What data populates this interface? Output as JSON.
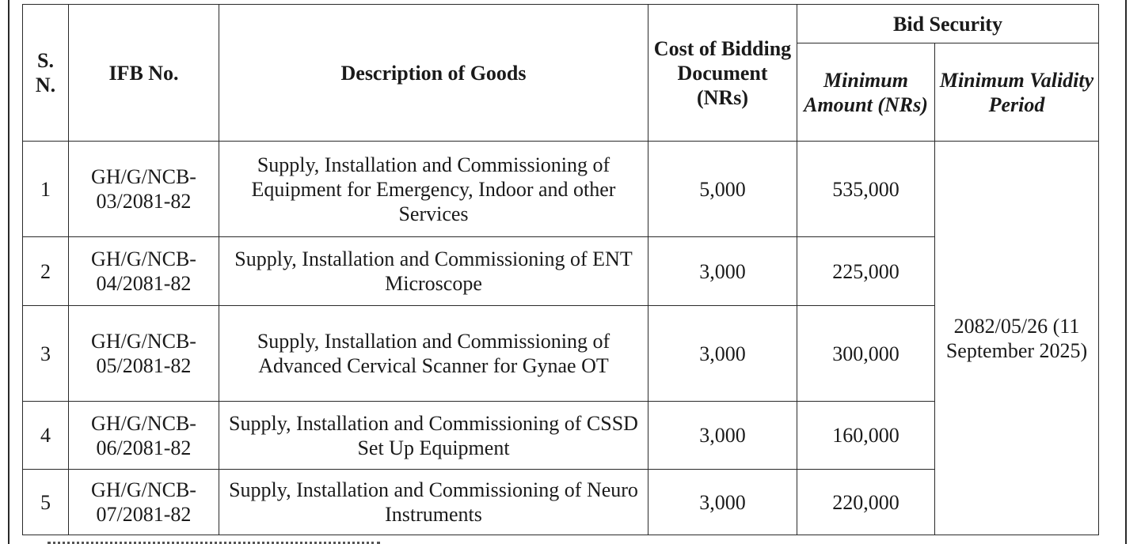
{
  "table": {
    "headers": {
      "sn": "S. N.",
      "ifb_no": "IFB No.",
      "description": "Description of Goods",
      "cost": "Cost of Bidding Document (NRs)",
      "bid_security": "Bid Security",
      "min_amount": "Minimum Amount (NRs)",
      "min_validity": "Minimum Validity Period"
    },
    "rows": [
      {
        "sn": "1",
        "ifb_no": "GH/G/NCB-03/2081-82",
        "description": "Supply, Installation and Commissioning of Equipment for Emergency, Indoor and other Services",
        "cost": "5,000",
        "amount": "535,000"
      },
      {
        "sn": "2",
        "ifb_no": "GH/G/NCB-04/2081-82",
        "description": "Supply, Installation and Commissioning of ENT Microscope",
        "cost": "3,000",
        "amount": "225,000"
      },
      {
        "sn": "3",
        "ifb_no": "GH/G/NCB-05/2081-82",
        "description": "Supply, Installation and Commissioning of Advanced Cervical Scanner for Gynae OT",
        "cost": "3,000",
        "amount": "300,000"
      },
      {
        "sn": "4",
        "ifb_no": "GH/G/NCB-06/2081-82",
        "description": "Supply, Installation and Commissioning of CSSD Set Up Equipment",
        "cost": "3,000",
        "amount": "160,000"
      },
      {
        "sn": "5",
        "ifb_no": "GH/G/NCB-07/2081-82",
        "description": "Supply, Installation and Commissioning of Neuro Instruments",
        "cost": "3,000",
        "amount": "220,000"
      }
    ],
    "validity": "2082/05/26 (11 September 2025)"
  }
}
